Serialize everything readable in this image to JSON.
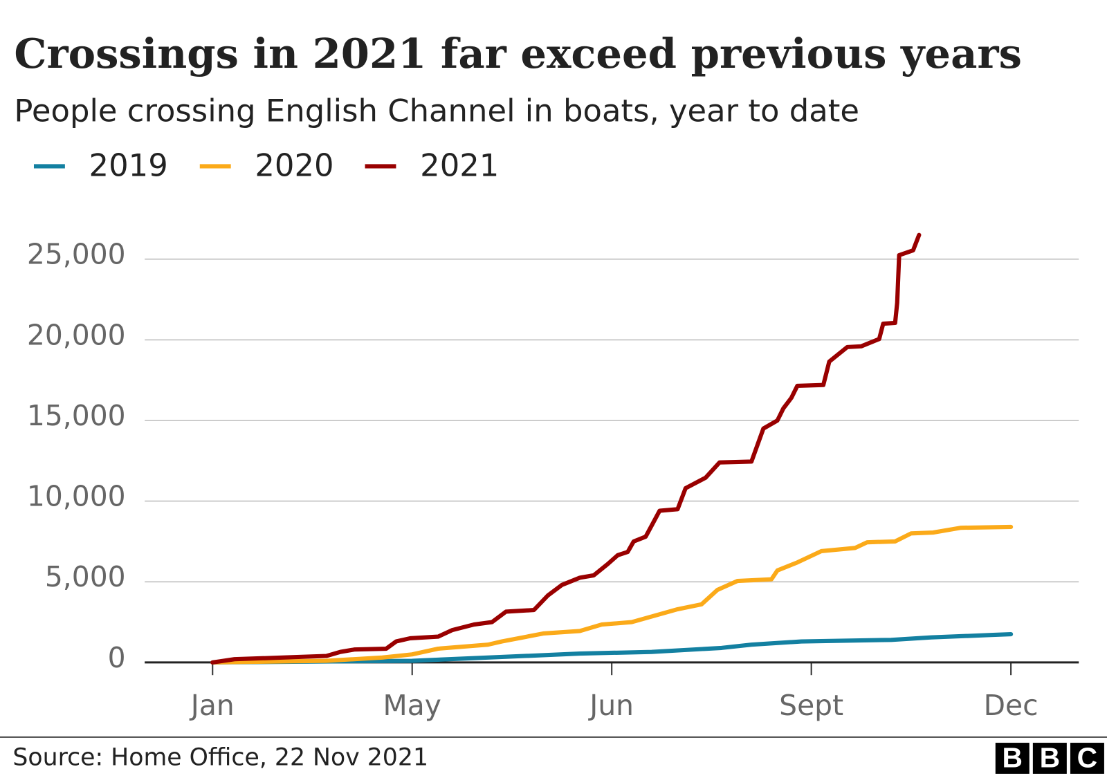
{
  "chart_data": {
    "type": "line",
    "title": "Crossings in 2021 far exceed previous years",
    "subtitle": "People crossing English Channel in boats, year to date",
    "source": "Source: Home Office, 22 Nov 2021",
    "logo": [
      "B",
      "B",
      "C"
    ],
    "xlim": [
      -0.34,
      4.34
    ],
    "xticks": [
      {
        "value": 0,
        "label": "Jan"
      },
      {
        "value": 1,
        "label": "May"
      },
      {
        "value": 2,
        "label": "Jun"
      },
      {
        "value": 3,
        "label": "Sept"
      },
      {
        "value": 4,
        "label": "Dec"
      }
    ],
    "ylim": [
      0,
      27000
    ],
    "yticks": [
      0,
      {
        "value": 5000,
        "label": "5,000"
      },
      {
        "value": 10000,
        "label": "10,000"
      },
      {
        "value": 15000,
        "label": "15,000"
      },
      {
        "value": 20000,
        "label": "20,000"
      },
      {
        "value": 25000,
        "label": "25,000"
      }
    ],
    "grid": true,
    "legend": "top-left",
    "series": [
      {
        "name": "2019",
        "color": "#1380a1",
        "x": [
          0,
          1.0,
          1.47,
          1.84,
          2.2,
          2.55,
          2.7,
          2.95,
          3.4,
          3.6,
          3.9,
          4.0
        ],
        "values": [
          0,
          100,
          350,
          550,
          650,
          900,
          1100,
          1300,
          1400,
          1550,
          1700,
          1750
        ]
      },
      {
        "name": "2020",
        "color": "#fbaa19",
        "x": [
          0,
          0.57,
          0.85,
          1.0,
          1.13,
          1.38,
          1.45,
          1.66,
          1.84,
          1.95,
          2.1,
          2.33,
          2.45,
          2.53,
          2.63,
          2.8,
          2.83,
          2.93,
          3.05,
          3.22,
          3.28,
          3.42,
          3.5,
          3.61,
          3.75,
          4.0
        ],
        "values": [
          0,
          100,
          300,
          500,
          850,
          1100,
          1300,
          1800,
          1950,
          2350,
          2500,
          3300,
          3600,
          4500,
          5050,
          5150,
          5700,
          6200,
          6900,
          7100,
          7450,
          7500,
          8000,
          8050,
          8350,
          8400
        ]
      },
      {
        "name": "2021",
        "color": "#990000",
        "x": [
          0,
          0.11,
          0.35,
          0.57,
          0.64,
          0.71,
          0.87,
          0.92,
          0.99,
          1.13,
          1.2,
          1.31,
          1.4,
          1.47,
          1.61,
          1.68,
          1.75,
          1.84,
          1.91,
          1.98,
          2.03,
          2.08,
          2.11,
          2.17,
          2.24,
          2.33,
          2.37,
          2.47,
          2.54,
          2.7,
          2.76,
          2.83,
          2.86,
          2.9,
          2.93,
          3.06,
          3.09,
          3.18,
          3.25,
          3.34,
          3.36,
          3.42,
          3.43,
          3.44,
          3.51,
          3.54
        ],
        "values": [
          0,
          200,
          300,
          400,
          650,
          800,
          850,
          1300,
          1500,
          1600,
          2000,
          2350,
          2500,
          3150,
          3250,
          4150,
          4800,
          5250,
          5400,
          6100,
          6650,
          6850,
          7500,
          7800,
          9400,
          9500,
          10800,
          11450,
          12400,
          12450,
          14500,
          15000,
          15750,
          16400,
          17150,
          17200,
          18650,
          19550,
          19600,
          20050,
          21000,
          21050,
          22300,
          25250,
          25550,
          26500
        ]
      }
    ]
  }
}
